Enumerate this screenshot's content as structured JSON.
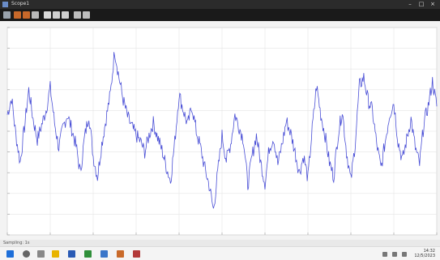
{
  "window": {
    "title": "Scope1"
  },
  "toolbar": {
    "buttons": [
      "settings-icon",
      "play-icon",
      "step-icon",
      "stop-icon",
      "highlight-icon",
      "zoom-icon",
      "zoom-x-icon",
      "zoom-y-icon",
      "autoscale-icon"
    ]
  },
  "status": {
    "text": "Sampling: 1s"
  },
  "clock": {
    "time": "14:32",
    "date": "12/5/2023"
  },
  "colors": {
    "trace": "#4a4fd6",
    "plot_bg": "#ffffff",
    "grid": "#e4e4e4",
    "frame": "#f0f0f0"
  },
  "chart_data": {
    "type": "line",
    "title": "",
    "xlabel": "",
    "ylabel": "",
    "grid": true,
    "xlim": [
      0,
      10
    ],
    "ylim": [
      -5,
      5
    ],
    "x_ticks": [
      0,
      1,
      2,
      3,
      4,
      5,
      6,
      7,
      8,
      9,
      10
    ],
    "y_ticks": [
      -5,
      -4,
      -3,
      -2,
      -1,
      0,
      1,
      2,
      3,
      4,
      5
    ],
    "series": [
      {
        "x": [
          0,
          0.1,
          0.2,
          0.3,
          0.4,
          0.5,
          0.6,
          0.7,
          0.8,
          0.9,
          1.0,
          1.1,
          1.2,
          1.3,
          1.4,
          1.5,
          1.6,
          1.7,
          1.8,
          1.9,
          2.0,
          2.1,
          2.2,
          2.3,
          2.4,
          2.5,
          2.6,
          2.7,
          2.8,
          2.9,
          3.0,
          3.1,
          3.2,
          3.3,
          3.4,
          3.5,
          3.6,
          3.7,
          3.8,
          3.9,
          4.0,
          4.1,
          4.2,
          4.3,
          4.4,
          4.5,
          4.6,
          4.7,
          4.8,
          4.9,
          5.0,
          5.1,
          5.2,
          5.3,
          5.4,
          5.5,
          5.6,
          5.7,
          5.8,
          5.9,
          6.0,
          6.1,
          6.2,
          6.3,
          6.4,
          6.5,
          6.6,
          6.7,
          6.8,
          6.9,
          7.0,
          7.1,
          7.2,
          7.3,
          7.4,
          7.5,
          7.6,
          7.7,
          7.8,
          7.9,
          8.0,
          8.1,
          8.2,
          8.3,
          8.4,
          8.5,
          8.6,
          8.7,
          8.8,
          8.9,
          9.0,
          9.1,
          9.2,
          9.3,
          9.4,
          9.5,
          9.6,
          9.7,
          9.8,
          9.9,
          10.0
        ],
        "y": [
          0.8,
          1.6,
          -0.2,
          -1.5,
          0.2,
          2.0,
          0.6,
          -0.4,
          0.3,
          1.0,
          2.1,
          0.4,
          -0.8,
          0.2,
          0.8,
          0.1,
          -0.7,
          -2.0,
          -0.3,
          0.8,
          -1.2,
          -2.2,
          -0.6,
          0.6,
          1.8,
          3.9,
          2.6,
          1.5,
          0.7,
          0.2,
          -0.2,
          -0.5,
          -1.0,
          -0.2,
          0.4,
          -0.3,
          -0.9,
          -1.7,
          -2.4,
          -0.5,
          1.8,
          1.0,
          0.3,
          1.2,
          0.0,
          -0.8,
          -1.8,
          -2.6,
          -3.8,
          -2.0,
          -0.2,
          -1.4,
          -0.6,
          0.8,
          0.2,
          -0.4,
          -2.6,
          -1.2,
          -0.2,
          -1.5,
          -2.5,
          -0.8,
          -0.3,
          -1.6,
          -0.6,
          0.5,
          -0.1,
          -1.0,
          -2.0,
          -1.2,
          -2.3,
          0.1,
          2.2,
          0.8,
          -0.2,
          -1.5,
          -2.2,
          -0.2,
          1.0,
          -1.0,
          -2.4,
          -0.6,
          2.2,
          2.6,
          1.5,
          1.0,
          -0.6,
          -1.8,
          -0.5,
          0.8,
          1.4,
          -0.5,
          -1.4,
          -0.4,
          0.6,
          -0.8,
          -1.6,
          0.4,
          1.2,
          2.4,
          1.2
        ]
      }
    ]
  }
}
